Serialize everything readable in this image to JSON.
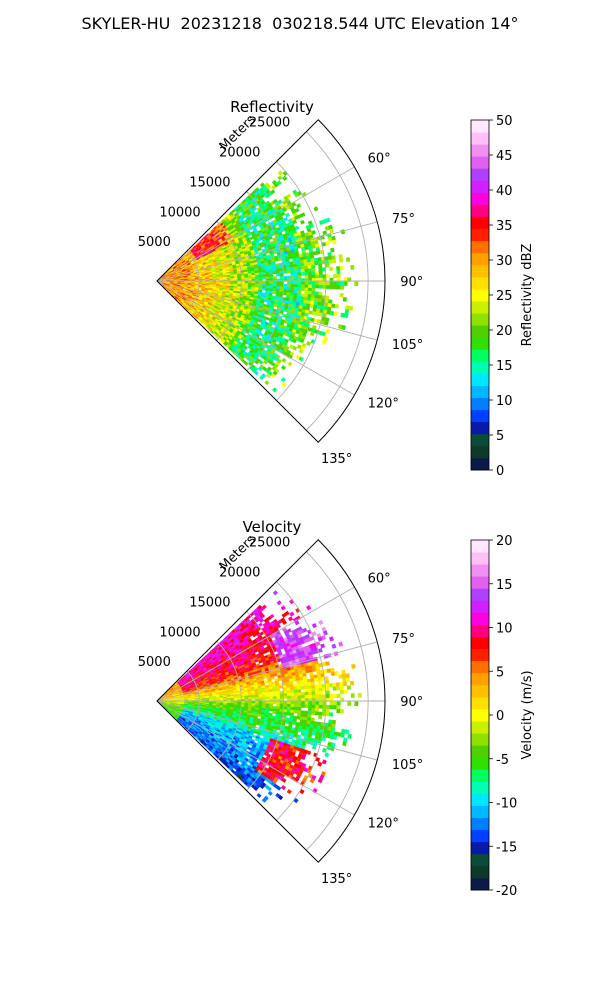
{
  "figure_title": "SKYLER-HU  20231218  030218.544 UTC Elevation 14°",
  "chart_data": [
    {
      "type": "heatmap",
      "projection": "polar-sector",
      "title": "Reflectivity",
      "radial_label": "Meters",
      "radial_ticks": [
        5000,
        10000,
        15000,
        20000,
        25000
      ],
      "radial_tick_labels": [
        "5000",
        "10000",
        "15000",
        "20000",
        "25000"
      ],
      "rlim": [
        0,
        27000
      ],
      "angle_ticks": [
        60,
        75,
        90,
        105,
        120,
        135
      ],
      "angle_tick_labels": [
        "60°",
        "75°",
        "90°",
        "105°",
        "120°",
        "135°"
      ],
      "theta_range": [
        45,
        135
      ],
      "grid": true,
      "colorbar": {
        "label": "Reflectivity dBZ",
        "range": [
          0,
          50
        ],
        "ticks": [
          0,
          5,
          10,
          15,
          20,
          25,
          30,
          35,
          40,
          45,
          50
        ],
        "tick_labels": [
          "0",
          "5",
          "10",
          "15",
          "20",
          "25",
          "30",
          "35",
          "40",
          "45",
          "50"
        ],
        "colors": [
          "#0b1a4a",
          "#0f3a2a",
          "#0b4b3a",
          "#0a1aa8",
          "#0040ff",
          "#0080ff",
          "#00b8ff",
          "#00e8ff",
          "#00ffb0",
          "#00ff60",
          "#30e000",
          "#50d000",
          "#90e000",
          "#c8f000",
          "#ffff00",
          "#ffe000",
          "#ffc000",
          "#ffa000",
          "#ff7000",
          "#ff2000",
          "#ff0000",
          "#ff0080",
          "#ff00e0",
          "#d020ff",
          "#b040ff",
          "#e060f0",
          "#f090f0",
          "#ffc0f8",
          "#ffe8ff"
        ]
      },
      "field_summary": [
        {
          "range_m": [
            0,
            8000
          ],
          "dominant_dbz": 30
        },
        {
          "range_m": [
            8000,
            12000
          ],
          "dominant_dbz": 25
        },
        {
          "range_m": [
            12000,
            18000
          ],
          "dominant_dbz": 17
        },
        {
          "range_m": [
            18000,
            24000
          ],
          "dominant_dbz": 20
        }
      ]
    },
    {
      "type": "heatmap",
      "projection": "polar-sector",
      "title": "Velocity",
      "radial_label": "Meters",
      "radial_ticks": [
        5000,
        10000,
        15000,
        20000,
        25000
      ],
      "radial_tick_labels": [
        "5000",
        "10000",
        "15000",
        "20000",
        "25000"
      ],
      "rlim": [
        0,
        27000
      ],
      "angle_ticks": [
        60,
        75,
        90,
        105,
        120,
        135
      ],
      "angle_tick_labels": [
        "60°",
        "75°",
        "90°",
        "105°",
        "120°",
        "135°"
      ],
      "theta_range": [
        45,
        135
      ],
      "grid": true,
      "colorbar": {
        "label": "Velocity (m/s)",
        "range": [
          -20,
          20
        ],
        "ticks": [
          -20,
          -15,
          -10,
          -5,
          0,
          5,
          10,
          15,
          20
        ],
        "tick_labels": [
          "-20",
          "-15",
          "-10",
          "-5",
          "0",
          "5",
          "10",
          "15",
          "20"
        ],
        "colors": [
          "#0b1a4a",
          "#0f3a2a",
          "#0b4b3a",
          "#0a1aa8",
          "#0040ff",
          "#0080ff",
          "#00b8ff",
          "#00e8ff",
          "#00ffb0",
          "#00ff60",
          "#30e000",
          "#50d000",
          "#90e000",
          "#c8f000",
          "#ffff00",
          "#ffe000",
          "#ffc000",
          "#ffa000",
          "#ff7000",
          "#ff2000",
          "#ff0000",
          "#ff0080",
          "#ff00e0",
          "#d020ff",
          "#b040ff",
          "#e060f0",
          "#f090f0",
          "#ffc0f8",
          "#ffe8ff"
        ]
      },
      "field_summary": [
        {
          "azimuth_deg": [
            50,
            75
          ],
          "dominant_ms": 12
        },
        {
          "azimuth_deg": [
            75,
            90
          ],
          "dominant_ms": 2
        },
        {
          "azimuth_deg": [
            90,
            110
          ],
          "dominant_ms": -5
        },
        {
          "azimuth_deg": [
            110,
            130
          ],
          "dominant_ms": -12
        }
      ]
    }
  ]
}
